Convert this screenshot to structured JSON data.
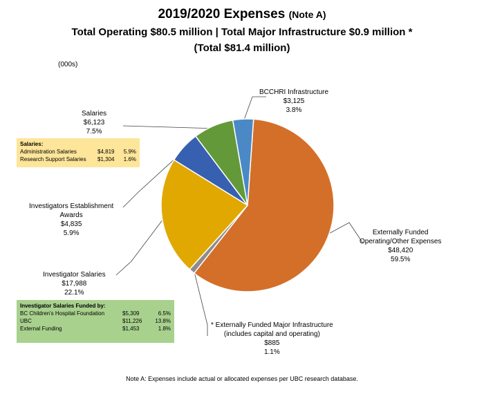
{
  "title": {
    "main": "2019/2020 Expenses",
    "note": "(Note A)",
    "line2": "Total Operating $80.5 million | Total Major Infrastructure $0.9 million *",
    "line3": "(Total $81.4 million)"
  },
  "units": "(000s)",
  "footer": "Note A:  Expenses include actual or allocated expenses per UBC research database.",
  "chart_data": {
    "type": "pie",
    "slices": [
      {
        "label": "Externally Funded Operating/Other Expenses",
        "label_lines": [
          "Externally Funded",
          "Operating/Other Expenses"
        ],
        "amount": "$48,420",
        "percent": "59.5%",
        "value": 48420,
        "color": "#d46f29"
      },
      {
        "label": "* Externally Funded Major Infrastructure (includes capital and operating)",
        "label_lines": [
          "* Externally Funded Major Infrastructure",
          "(includes capital and operating)"
        ],
        "amount": "$885",
        "percent": "1.1%",
        "value": 885,
        "color": "#8c8c8c"
      },
      {
        "label": "Investigator Salaries",
        "label_lines": [
          "Investigator Salaries"
        ],
        "amount": "$17,988",
        "percent": "22.1%",
        "value": 17988,
        "color": "#e0a800"
      },
      {
        "label": "Investigators Establishment Awards",
        "label_lines": [
          "Investigators Establishment",
          "Awards"
        ],
        "amount": "$4,835",
        "percent": "5.9%",
        "value": 4835,
        "color": "#3760b0"
      },
      {
        "label": "Salaries",
        "label_lines": [
          "Salaries"
        ],
        "amount": "$6,123",
        "percent": "7.5%",
        "value": 6123,
        "color": "#64993a"
      },
      {
        "label": "BCCHRI Infrastructure",
        "label_lines": [
          "BCCHRI Infrastructure"
        ],
        "amount": "$3,125",
        "percent": "3.8%",
        "value": 3125,
        "color": "#4a89c5"
      }
    ]
  },
  "salaries_box": {
    "title": "Salaries:",
    "rows": [
      {
        "name": "Administration Salaries",
        "amount": "$4,819",
        "percent": "5.9%"
      },
      {
        "name": "Research Support Salaries",
        "amount": "$1,304",
        "percent": "1.6%"
      }
    ]
  },
  "investigator_box": {
    "title": "Investigator Salaries Funded by:",
    "rows": [
      {
        "name": "BC Children's Hospital Foundation",
        "amount": "$5,309",
        "percent": "6.5%"
      },
      {
        "name": "UBC",
        "amount": "$11,226",
        "percent": "13.8%"
      },
      {
        "name": "External Funding",
        "amount": "$1,453",
        "percent": "1.8%"
      }
    ]
  }
}
